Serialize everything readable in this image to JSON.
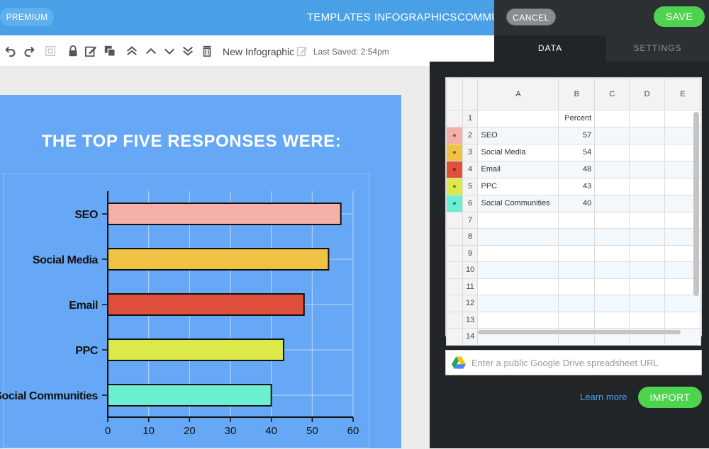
{
  "topbar": {
    "premium_label": "PREMIUM",
    "nav": [
      "TEMPLATES",
      "INFOGRAPHICS",
      "COMMU"
    ]
  },
  "toolbar": {
    "doc_title": "New Infographic",
    "last_saved": "Last Saved: 2:54pm"
  },
  "canvas": {
    "title": "THE TOP FIVE RESPONSES WERE:"
  },
  "chart_data": {
    "type": "bar",
    "orientation": "horizontal",
    "categories": [
      "SEO",
      "Social Media",
      "Email",
      "PPC",
      "Social Communities"
    ],
    "values": [
      57,
      54,
      48,
      43,
      40
    ],
    "colors": [
      "#f4afa8",
      "#f0c244",
      "#e04f3c",
      "#dbe94a",
      "#6aefd0"
    ],
    "xlim": [
      0,
      60
    ],
    "xticks": [
      0,
      10,
      20,
      30,
      40,
      50,
      60
    ],
    "grid": true,
    "title": "THE TOP FIVE RESPONSES WERE:",
    "xlabel": "",
    "ylabel": ""
  },
  "panel": {
    "cancel_label": "CANCEL",
    "save_label": "SAVE",
    "tab_data": "DATA",
    "tab_settings": "SETTINGS",
    "columns": [
      "A",
      "B",
      "C",
      "D",
      "E"
    ],
    "rows": [
      {
        "num": "1",
        "a": "",
        "b": "Percent",
        "color": ""
      },
      {
        "num": "2",
        "a": "SEO",
        "b": "57",
        "color": "#f4afa8"
      },
      {
        "num": "3",
        "a": "Social Media",
        "b": "54",
        "color": "#f0c244"
      },
      {
        "num": "4",
        "a": "Email",
        "b": "48",
        "color": "#e04f3c"
      },
      {
        "num": "5",
        "a": "PPC",
        "b": "43",
        "color": "#dbe94a"
      },
      {
        "num": "6",
        "a": "Social Communities",
        "b": "40",
        "color": "#6aefd0"
      },
      {
        "num": "7",
        "a": "",
        "b": "",
        "color": ""
      },
      {
        "num": "8",
        "a": "",
        "b": "",
        "color": ""
      },
      {
        "num": "9",
        "a": "",
        "b": "",
        "color": ""
      },
      {
        "num": "10",
        "a": "",
        "b": "",
        "color": ""
      },
      {
        "num": "11",
        "a": "",
        "b": "",
        "color": ""
      },
      {
        "num": "12",
        "a": "",
        "b": "",
        "color": ""
      },
      {
        "num": "13",
        "a": "",
        "b": "",
        "color": ""
      },
      {
        "num": "14",
        "a": "",
        "b": "",
        "color": ""
      }
    ],
    "gdrive_placeholder": "Enter a public Google Drive spreadsheet URL",
    "learn_more": "Learn more",
    "import_label": "IMPORT"
  },
  "colors": {
    "topbar": "#4aa0e6",
    "canvas_bg": "#66a8f5",
    "accent_green": "#4ed34e"
  }
}
